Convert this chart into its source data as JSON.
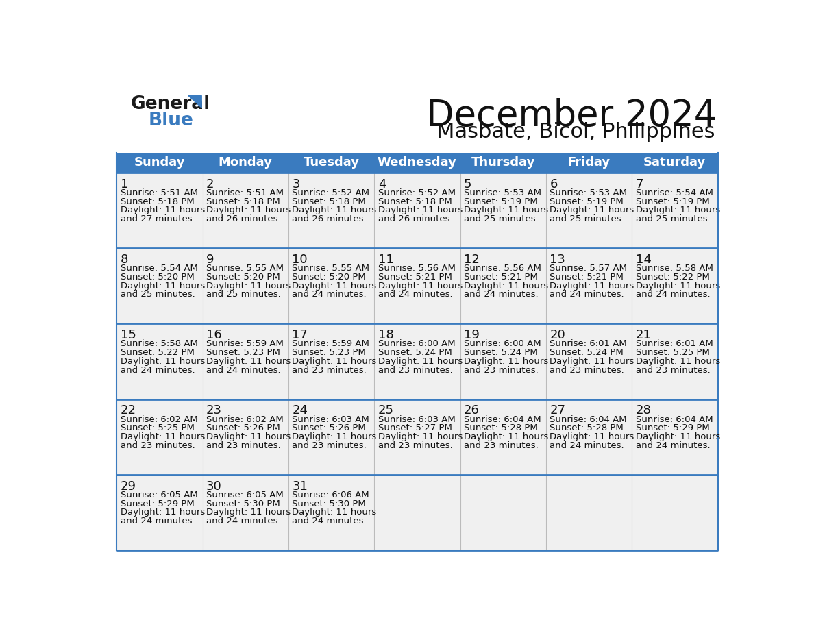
{
  "title": "December 2024",
  "subtitle": "Masbate, Bicol, Philippines",
  "header_bg_color": "#3a7bbf",
  "header_text_color": "#ffffff",
  "cell_bg_color": "#f0f0f0",
  "grid_line_color": "#3a7bbf",
  "day_headers": [
    "Sunday",
    "Monday",
    "Tuesday",
    "Wednesday",
    "Thursday",
    "Friday",
    "Saturday"
  ],
  "weeks": [
    [
      {
        "day": 1,
        "sunrise": "5:51 AM",
        "sunset": "5:18 PM",
        "daylight_mins": "27"
      },
      {
        "day": 2,
        "sunrise": "5:51 AM",
        "sunset": "5:18 PM",
        "daylight_mins": "26"
      },
      {
        "day": 3,
        "sunrise": "5:52 AM",
        "sunset": "5:18 PM",
        "daylight_mins": "26"
      },
      {
        "day": 4,
        "sunrise": "5:52 AM",
        "sunset": "5:18 PM",
        "daylight_mins": "26"
      },
      {
        "day": 5,
        "sunrise": "5:53 AM",
        "sunset": "5:19 PM",
        "daylight_mins": "25"
      },
      {
        "day": 6,
        "sunrise": "5:53 AM",
        "sunset": "5:19 PM",
        "daylight_mins": "25"
      },
      {
        "day": 7,
        "sunrise": "5:54 AM",
        "sunset": "5:19 PM",
        "daylight_mins": "25"
      }
    ],
    [
      {
        "day": 8,
        "sunrise": "5:54 AM",
        "sunset": "5:20 PM",
        "daylight_mins": "25"
      },
      {
        "day": 9,
        "sunrise": "5:55 AM",
        "sunset": "5:20 PM",
        "daylight_mins": "25"
      },
      {
        "day": 10,
        "sunrise": "5:55 AM",
        "sunset": "5:20 PM",
        "daylight_mins": "24"
      },
      {
        "day": 11,
        "sunrise": "5:56 AM",
        "sunset": "5:21 PM",
        "daylight_mins": "24"
      },
      {
        "day": 12,
        "sunrise": "5:56 AM",
        "sunset": "5:21 PM",
        "daylight_mins": "24"
      },
      {
        "day": 13,
        "sunrise": "5:57 AM",
        "sunset": "5:21 PM",
        "daylight_mins": "24"
      },
      {
        "day": 14,
        "sunrise": "5:58 AM",
        "sunset": "5:22 PM",
        "daylight_mins": "24"
      }
    ],
    [
      {
        "day": 15,
        "sunrise": "5:58 AM",
        "sunset": "5:22 PM",
        "daylight_mins": "24"
      },
      {
        "day": 16,
        "sunrise": "5:59 AM",
        "sunset": "5:23 PM",
        "daylight_mins": "24"
      },
      {
        "day": 17,
        "sunrise": "5:59 AM",
        "sunset": "5:23 PM",
        "daylight_mins": "23"
      },
      {
        "day": 18,
        "sunrise": "6:00 AM",
        "sunset": "5:24 PM",
        "daylight_mins": "23"
      },
      {
        "day": 19,
        "sunrise": "6:00 AM",
        "sunset": "5:24 PM",
        "daylight_mins": "23"
      },
      {
        "day": 20,
        "sunrise": "6:01 AM",
        "sunset": "5:24 PM",
        "daylight_mins": "23"
      },
      {
        "day": 21,
        "sunrise": "6:01 AM",
        "sunset": "5:25 PM",
        "daylight_mins": "23"
      }
    ],
    [
      {
        "day": 22,
        "sunrise": "6:02 AM",
        "sunset": "5:25 PM",
        "daylight_mins": "23"
      },
      {
        "day": 23,
        "sunrise": "6:02 AM",
        "sunset": "5:26 PM",
        "daylight_mins": "23"
      },
      {
        "day": 24,
        "sunrise": "6:03 AM",
        "sunset": "5:26 PM",
        "daylight_mins": "23"
      },
      {
        "day": 25,
        "sunrise": "6:03 AM",
        "sunset": "5:27 PM",
        "daylight_mins": "23"
      },
      {
        "day": 26,
        "sunrise": "6:04 AM",
        "sunset": "5:28 PM",
        "daylight_mins": "23"
      },
      {
        "day": 27,
        "sunrise": "6:04 AM",
        "sunset": "5:28 PM",
        "daylight_mins": "24"
      },
      {
        "day": 28,
        "sunrise": "6:04 AM",
        "sunset": "5:29 PM",
        "daylight_mins": "24"
      }
    ],
    [
      {
        "day": 29,
        "sunrise": "6:05 AM",
        "sunset": "5:29 PM",
        "daylight_mins": "24"
      },
      {
        "day": 30,
        "sunrise": "6:05 AM",
        "sunset": "5:30 PM",
        "daylight_mins": "24"
      },
      {
        "day": 31,
        "sunrise": "6:06 AM",
        "sunset": "5:30 PM",
        "daylight_mins": "24"
      },
      null,
      null,
      null,
      null
    ]
  ],
  "logo_general_color": "#1a1a1a",
  "logo_blue_color": "#3a7bbf",
  "logo_triangle_color": "#3a7bbf",
  "title_fontsize": 38,
  "subtitle_fontsize": 22,
  "header_fontsize": 13,
  "day_number_fontsize": 13,
  "cell_text_fontsize": 9.5
}
